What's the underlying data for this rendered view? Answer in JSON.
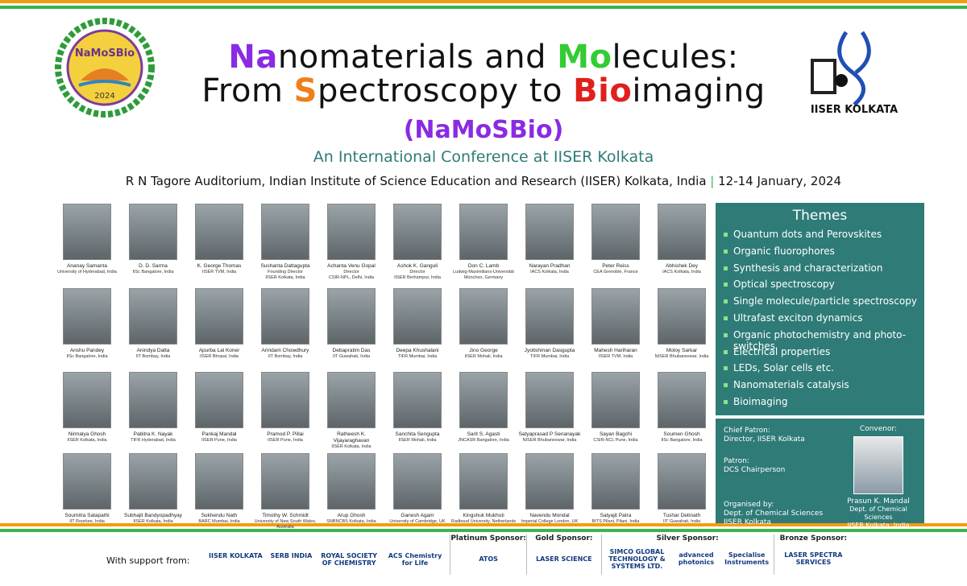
{
  "header": {
    "title_lines": [
      [
        {
          "text": "Na",
          "color": "#8a2be2"
        },
        {
          "text": "nomaterials and "
        },
        {
          "text": "Mo",
          "color": "#33cc33"
        },
        {
          "text": "lecules:"
        }
      ],
      [
        {
          "text": "From "
        },
        {
          "text": "S",
          "color": "#f07f1a"
        },
        {
          "text": "pectroscopy to "
        },
        {
          "text": "Bio",
          "color": "#e0201b"
        },
        {
          "text": "imaging"
        }
      ]
    ],
    "acronym": "(NaMoSBio)",
    "subtitle": "An International Conference at IISER Kolkata",
    "venue": "R N Tagore Auditorium, Indian Institute of Science Education and Research (IISER) Kolkata, India",
    "separator": "|",
    "dates": "12-14 January, 2024"
  },
  "logo_left": {
    "title": "NaMoSBio",
    "year": "2024"
  },
  "logo_right": {
    "text": "IISER KOLKATA"
  },
  "speakers": [
    {
      "name": "Ananay Samanta",
      "lines": [
        "University of Hyderabad, India"
      ]
    },
    {
      "name": "D. D. Sarma",
      "lines": [
        "IISc Bangalore, India"
      ]
    },
    {
      "name": "K. George Thomas",
      "lines": [
        "IISER TVM, India"
      ]
    },
    {
      "name": "Sushanta Dattagupta",
      "lines": [
        "Founding Director",
        "IISER Kolkata, India"
      ]
    },
    {
      "name": "Achanta Venu Gopal",
      "lines": [
        "Director",
        "CSIR-NPL, Delhi, India"
      ]
    },
    {
      "name": "Ashok K. Ganguli",
      "lines": [
        "Director",
        "IISER Berhampur, India"
      ]
    },
    {
      "name": "Don C. Lamb",
      "lines": [
        "Ludwig-Maximilians-Universität",
        "München, Germany"
      ]
    },
    {
      "name": "Narayan Pradhan",
      "lines": [
        "IACS Kolkata, India"
      ]
    },
    {
      "name": "Peter Reiss",
      "lines": [
        "CEA Grenoble, France"
      ]
    },
    {
      "name": "Abhishek Dey",
      "lines": [
        "IACS Kolkata, India"
      ]
    },
    {
      "name": "Anshu Pandey",
      "lines": [
        "IISc Bangalore, India"
      ]
    },
    {
      "name": "Anindya Datta",
      "lines": [
        "IIT Bombay, India"
      ]
    },
    {
      "name": "Apurba Lal Koner",
      "lines": [
        "IISER Bhopal, India"
      ]
    },
    {
      "name": "Arindam Chowdhury",
      "lines": [
        "IIT Bombay, India"
      ]
    },
    {
      "name": "Debapratim Das",
      "lines": [
        "IIT Guwahati, India"
      ]
    },
    {
      "name": "Deepa Khushalani",
      "lines": [
        "TIFR Mumbai, India"
      ]
    },
    {
      "name": "Jino George",
      "lines": [
        "IISER Mohali, India"
      ]
    },
    {
      "name": "Jyotishman Dasgupta",
      "lines": [
        "TIFR Mumbai, India"
      ]
    },
    {
      "name": "Mahesh Hariharan",
      "lines": [
        "IISER TVM, India"
      ]
    },
    {
      "name": "Moloy Sarkar",
      "lines": [
        "NISER Bhubaneswar, India"
      ]
    },
    {
      "name": "Nirmalya Ghosh",
      "lines": [
        "IISER Kolkata, India"
      ]
    },
    {
      "name": "Pabitra K. Nayak",
      "lines": [
        "TIFR Hyderabad, India"
      ]
    },
    {
      "name": "Pankaj Mandal",
      "lines": [
        "IISER Pune, India"
      ]
    },
    {
      "name": "Pramod P. Pillai",
      "lines": [
        "IISER Pune, India"
      ]
    },
    {
      "name": "Ratheesh K. Vijayaraghavan",
      "lines": [
        "IISER Kolkata, India"
      ]
    },
    {
      "name": "Sanchita Sengupta",
      "lines": [
        "IISER Mohali, India"
      ]
    },
    {
      "name": "Sarit S. Agasti",
      "lines": [
        "JNCASR Bangalore, India"
      ]
    },
    {
      "name": "Satyaprasad P Senanayak",
      "lines": [
        "NISER Bhubaneswar, India"
      ]
    },
    {
      "name": "Sayan Bagchi",
      "lines": [
        "CSIR-NCL Pune, India"
      ]
    },
    {
      "name": "Soumen Ghosh",
      "lines": [
        "IISc Bangalore, India"
      ]
    },
    {
      "name": "Soumitra Satapathi",
      "lines": [
        "IIT Roorkee, India"
      ]
    },
    {
      "name": "Subhajit Bandyopadhyay",
      "lines": [
        "IISER Kolkata, India"
      ]
    },
    {
      "name": "Sukhendu Nath",
      "lines": [
        "BARC Mumbai, India"
      ]
    },
    {
      "name": "Timothy W. Schmidt",
      "lines": [
        "University of New South Wales,",
        "Australia"
      ]
    },
    {
      "name": "Arup Ghosh",
      "lines": [
        "SNBNCBS Kolkata, India"
      ]
    },
    {
      "name": "Ganesh Agam",
      "lines": [
        "University of Cambridge, UK"
      ]
    },
    {
      "name": "Kingshuk Mukhuti",
      "lines": [
        "Radboud University, Netherlands"
      ]
    },
    {
      "name": "Navendu Mondal",
      "lines": [
        "Imperial College London, UK"
      ]
    },
    {
      "name": "Satyajit Patra",
      "lines": [
        "BITS Pilani, Pilani, India"
      ]
    },
    {
      "name": "Tushar Debnath",
      "lines": [
        "IIT Guwahati, India"
      ]
    }
  ],
  "themes": {
    "title": "Themes",
    "items": [
      "Quantum dots and Perovskites",
      "Organic fluorophores",
      "Synthesis and characterization",
      "Optical spectroscopy",
      "Single molecule/particle spectroscopy",
      "Ultrafast exciton dynamics",
      "Organic photochemistry and photo-switches",
      "Electrical properties",
      "LEDs, Solar cells etc.",
      "Nanomaterials catalysis",
      "Bioimaging"
    ]
  },
  "organizers": [
    {
      "label": "Chief Patron:",
      "lines": [
        "Director, IISER Kolkata"
      ]
    },
    {
      "label": "Patron:",
      "lines": [
        "DCS Chairperson"
      ]
    },
    {
      "label": "Organised by:",
      "lines": [
        "Dept. of Chemical Sciences",
        "IISER Kolkata"
      ]
    }
  ],
  "convenor": {
    "label": "Convenor:",
    "name": "Prasun K. Mandal",
    "lines": [
      "Dept. of Chemical Sciences",
      "IISER Kolkata, India"
    ]
  },
  "footer": {
    "support_label": "With support from:",
    "supporters": [
      "IISER KOLKATA",
      "SERB INDIA",
      "ROYAL SOCIETY OF CHEMISTRY",
      "ACS Chemistry for Life"
    ],
    "sponsors": [
      {
        "tier": "Platinum Sponsor:",
        "logos": [
          "ATOS"
        ]
      },
      {
        "tier": "Gold Sponsor:",
        "logos": [
          "LASER SCIENCE"
        ]
      },
      {
        "tier": "Silver Sponsor:",
        "logos": [
          "SIMCO GLOBAL TECHNOLOGY & SYSTEMS LTD.",
          "advanced photonics",
          "Specialise Instruments"
        ]
      },
      {
        "tier": "Bronze Sponsor:",
        "logos": [
          "LASER SPECTRA SERVICES"
        ]
      }
    ]
  }
}
